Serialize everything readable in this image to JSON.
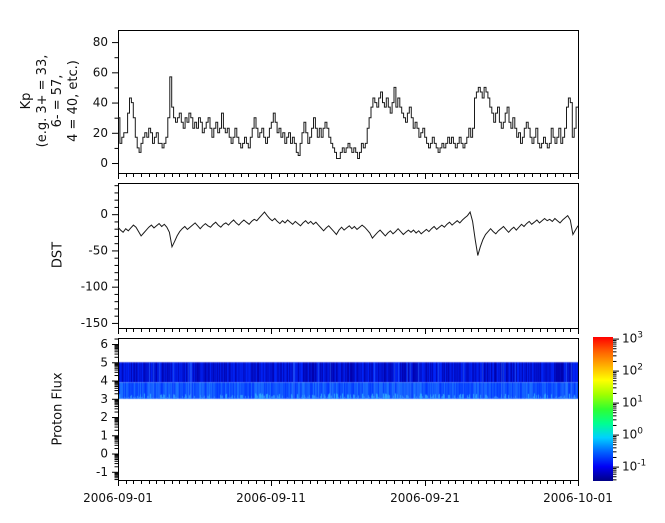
{
  "figure": {
    "background": "#ffffff",
    "axis_color": "#000000",
    "line_color": "#1a1a1a"
  },
  "x_axis": {
    "tick_labels": [
      "2006-09-01",
      "2006-09-11",
      "2006-09-21",
      "2006-10-01"
    ],
    "range_days": [
      0,
      30
    ],
    "major_tick_days": [
      0,
      10,
      20,
      30
    ],
    "minor_tick_interval_days": 0.5
  },
  "chart_data": [
    {
      "type": "line",
      "subtype": "step",
      "name": "kp-index",
      "ylabel_lines": [
        "Kp",
        "(e.g. 3+ = 33,",
        "6- = 57,",
        "4 = 40, etc.)"
      ],
      "yticks": [
        0,
        20,
        40,
        60,
        80
      ],
      "y_minor_step": 10,
      "ylim": [
        -6.6,
        88
      ],
      "x_start_day": 0,
      "x_step_days": 0.125,
      "values": [
        30,
        13,
        17,
        20,
        20,
        33,
        43,
        40,
        30,
        17,
        10,
        7,
        13,
        17,
        20,
        17,
        23,
        20,
        13,
        17,
        20,
        13,
        13,
        10,
        13,
        17,
        30,
        57,
        37,
        30,
        27,
        30,
        33,
        27,
        23,
        30,
        27,
        33,
        30,
        23,
        27,
        23,
        30,
        27,
        20,
        23,
        27,
        30,
        23,
        17,
        23,
        27,
        20,
        23,
        33,
        23,
        20,
        23,
        17,
        13,
        17,
        23,
        17,
        13,
        10,
        13,
        17,
        13,
        10,
        17,
        23,
        30,
        23,
        17,
        20,
        23,
        17,
        13,
        17,
        23,
        27,
        33,
        27,
        20,
        23,
        17,
        20,
        13,
        17,
        20,
        13,
        17,
        13,
        7,
        5,
        13,
        20,
        27,
        20,
        13,
        17,
        23,
        30,
        23,
        17,
        23,
        17,
        23,
        27,
        23,
        17,
        13,
        10,
        7,
        3,
        3,
        7,
        10,
        7,
        10,
        13,
        10,
        7,
        10,
        7,
        3,
        7,
        13,
        10,
        13,
        23,
        30,
        37,
        43,
        40,
        37,
        43,
        47,
        40,
        37,
        43,
        37,
        33,
        40,
        50,
        37,
        43,
        37,
        33,
        30,
        27,
        33,
        37,
        30,
        23,
        27,
        23,
        17,
        20,
        23,
        17,
        13,
        10,
        13,
        17,
        13,
        10,
        7,
        10,
        13,
        10,
        13,
        17,
        13,
        17,
        13,
        10,
        13,
        17,
        13,
        10,
        13,
        17,
        23,
        17,
        23,
        43,
        47,
        50,
        47,
        43,
        50,
        47,
        43,
        37,
        33,
        27,
        33,
        37,
        27,
        23,
        27,
        33,
        37,
        27,
        23,
        30,
        23,
        17,
        20,
        13,
        17,
        23,
        27,
        23,
        17,
        13,
        17,
        23,
        13,
        10,
        13,
        17,
        13,
        10,
        13,
        23,
        17,
        13,
        17,
        23,
        13,
        17,
        23,
        37,
        43,
        40,
        17,
        23,
        37
      ]
    },
    {
      "type": "line",
      "name": "dst-index",
      "ylabel": "DST",
      "yticks": [
        0,
        -50,
        -100,
        -150
      ],
      "y_minor_step": 10,
      "ylim": [
        -157,
        43
      ],
      "x_start_day": 0,
      "x_step_days": 0.16667,
      "values": [
        -18,
        -22,
        -25,
        -20,
        -23,
        -19,
        -15,
        -18,
        -24,
        -30,
        -26,
        -22,
        -18,
        -15,
        -19,
        -16,
        -13,
        -17,
        -14,
        -18,
        -25,
        -45,
        -38,
        -30,
        -24,
        -20,
        -17,
        -21,
        -18,
        -15,
        -12,
        -16,
        -20,
        -16,
        -13,
        -16,
        -18,
        -14,
        -11,
        -15,
        -18,
        -14,
        -12,
        -15,
        -11,
        -8,
        -12,
        -15,
        -11,
        -8,
        -11,
        -14,
        -10,
        -7,
        -9,
        -5,
        -1,
        3,
        -2,
        -6,
        -9,
        -6,
        -10,
        -13,
        -9,
        -12,
        -8,
        -11,
        -14,
        -10,
        -13,
        -16,
        -12,
        -9,
        -13,
        -10,
        -14,
        -11,
        -15,
        -19,
        -23,
        -19,
        -16,
        -20,
        -24,
        -28,
        -22,
        -18,
        -22,
        -19,
        -16,
        -20,
        -17,
        -21,
        -18,
        -15,
        -18,
        -22,
        -26,
        -33,
        -29,
        -25,
        -22,
        -26,
        -30,
        -26,
        -23,
        -27,
        -24,
        -20,
        -24,
        -28,
        -25,
        -22,
        -25,
        -22,
        -26,
        -23,
        -27,
        -24,
        -21,
        -24,
        -20,
        -17,
        -21,
        -18,
        -15,
        -18,
        -14,
        -11,
        -15,
        -12,
        -9,
        -12,
        -8,
        -5,
        -2,
        3,
        -10,
        -35,
        -57,
        -45,
        -35,
        -28,
        -24,
        -20,
        -24,
        -27,
        -23,
        -20,
        -17,
        -21,
        -25,
        -21,
        -18,
        -22,
        -18,
        -14,
        -17,
        -13,
        -10,
        -14,
        -11,
        -8,
        -12,
        -9,
        -6,
        -9,
        -7,
        -10,
        -6,
        -9,
        -12,
        -8,
        -5,
        -2,
        -8,
        -28,
        -22,
        -16
      ]
    },
    {
      "type": "heatmap",
      "name": "proton-flux-spectrogram",
      "ylabel": "Proton Flux",
      "yticks": [
        6,
        5,
        4,
        3,
        2,
        1,
        0,
        -1
      ],
      "y_minor_pattern": "log",
      "ylim": [
        -1.45,
        6.33
      ],
      "band_value_range": [
        3,
        5
      ],
      "band_description": "continuous low-intensity blue band (flux ~0.05-0.5) with vertical noise streaks, brighter near lower edge",
      "noise_seed": 42,
      "band_colors": {
        "upper_base": [
          0,
          0,
          200
        ],
        "lower_base": [
          10,
          70,
          255
        ],
        "streak": [
          45,
          130,
          255
        ]
      },
      "colorbar": {
        "scale": "log",
        "tick_exponents": [
          3,
          2,
          1,
          0,
          -1
        ],
        "range_exponents": [
          -1.45,
          3.05
        ],
        "colormap": "jet",
        "colors_bottom_to_top": [
          "#000085",
          "#0000f5",
          "#0060ff",
          "#00d0ff",
          "#00ff90",
          "#30ff30",
          "#a0ff00",
          "#ffff00",
          "#ffb000",
          "#ff6000",
          "#ff0000"
        ]
      }
    }
  ]
}
